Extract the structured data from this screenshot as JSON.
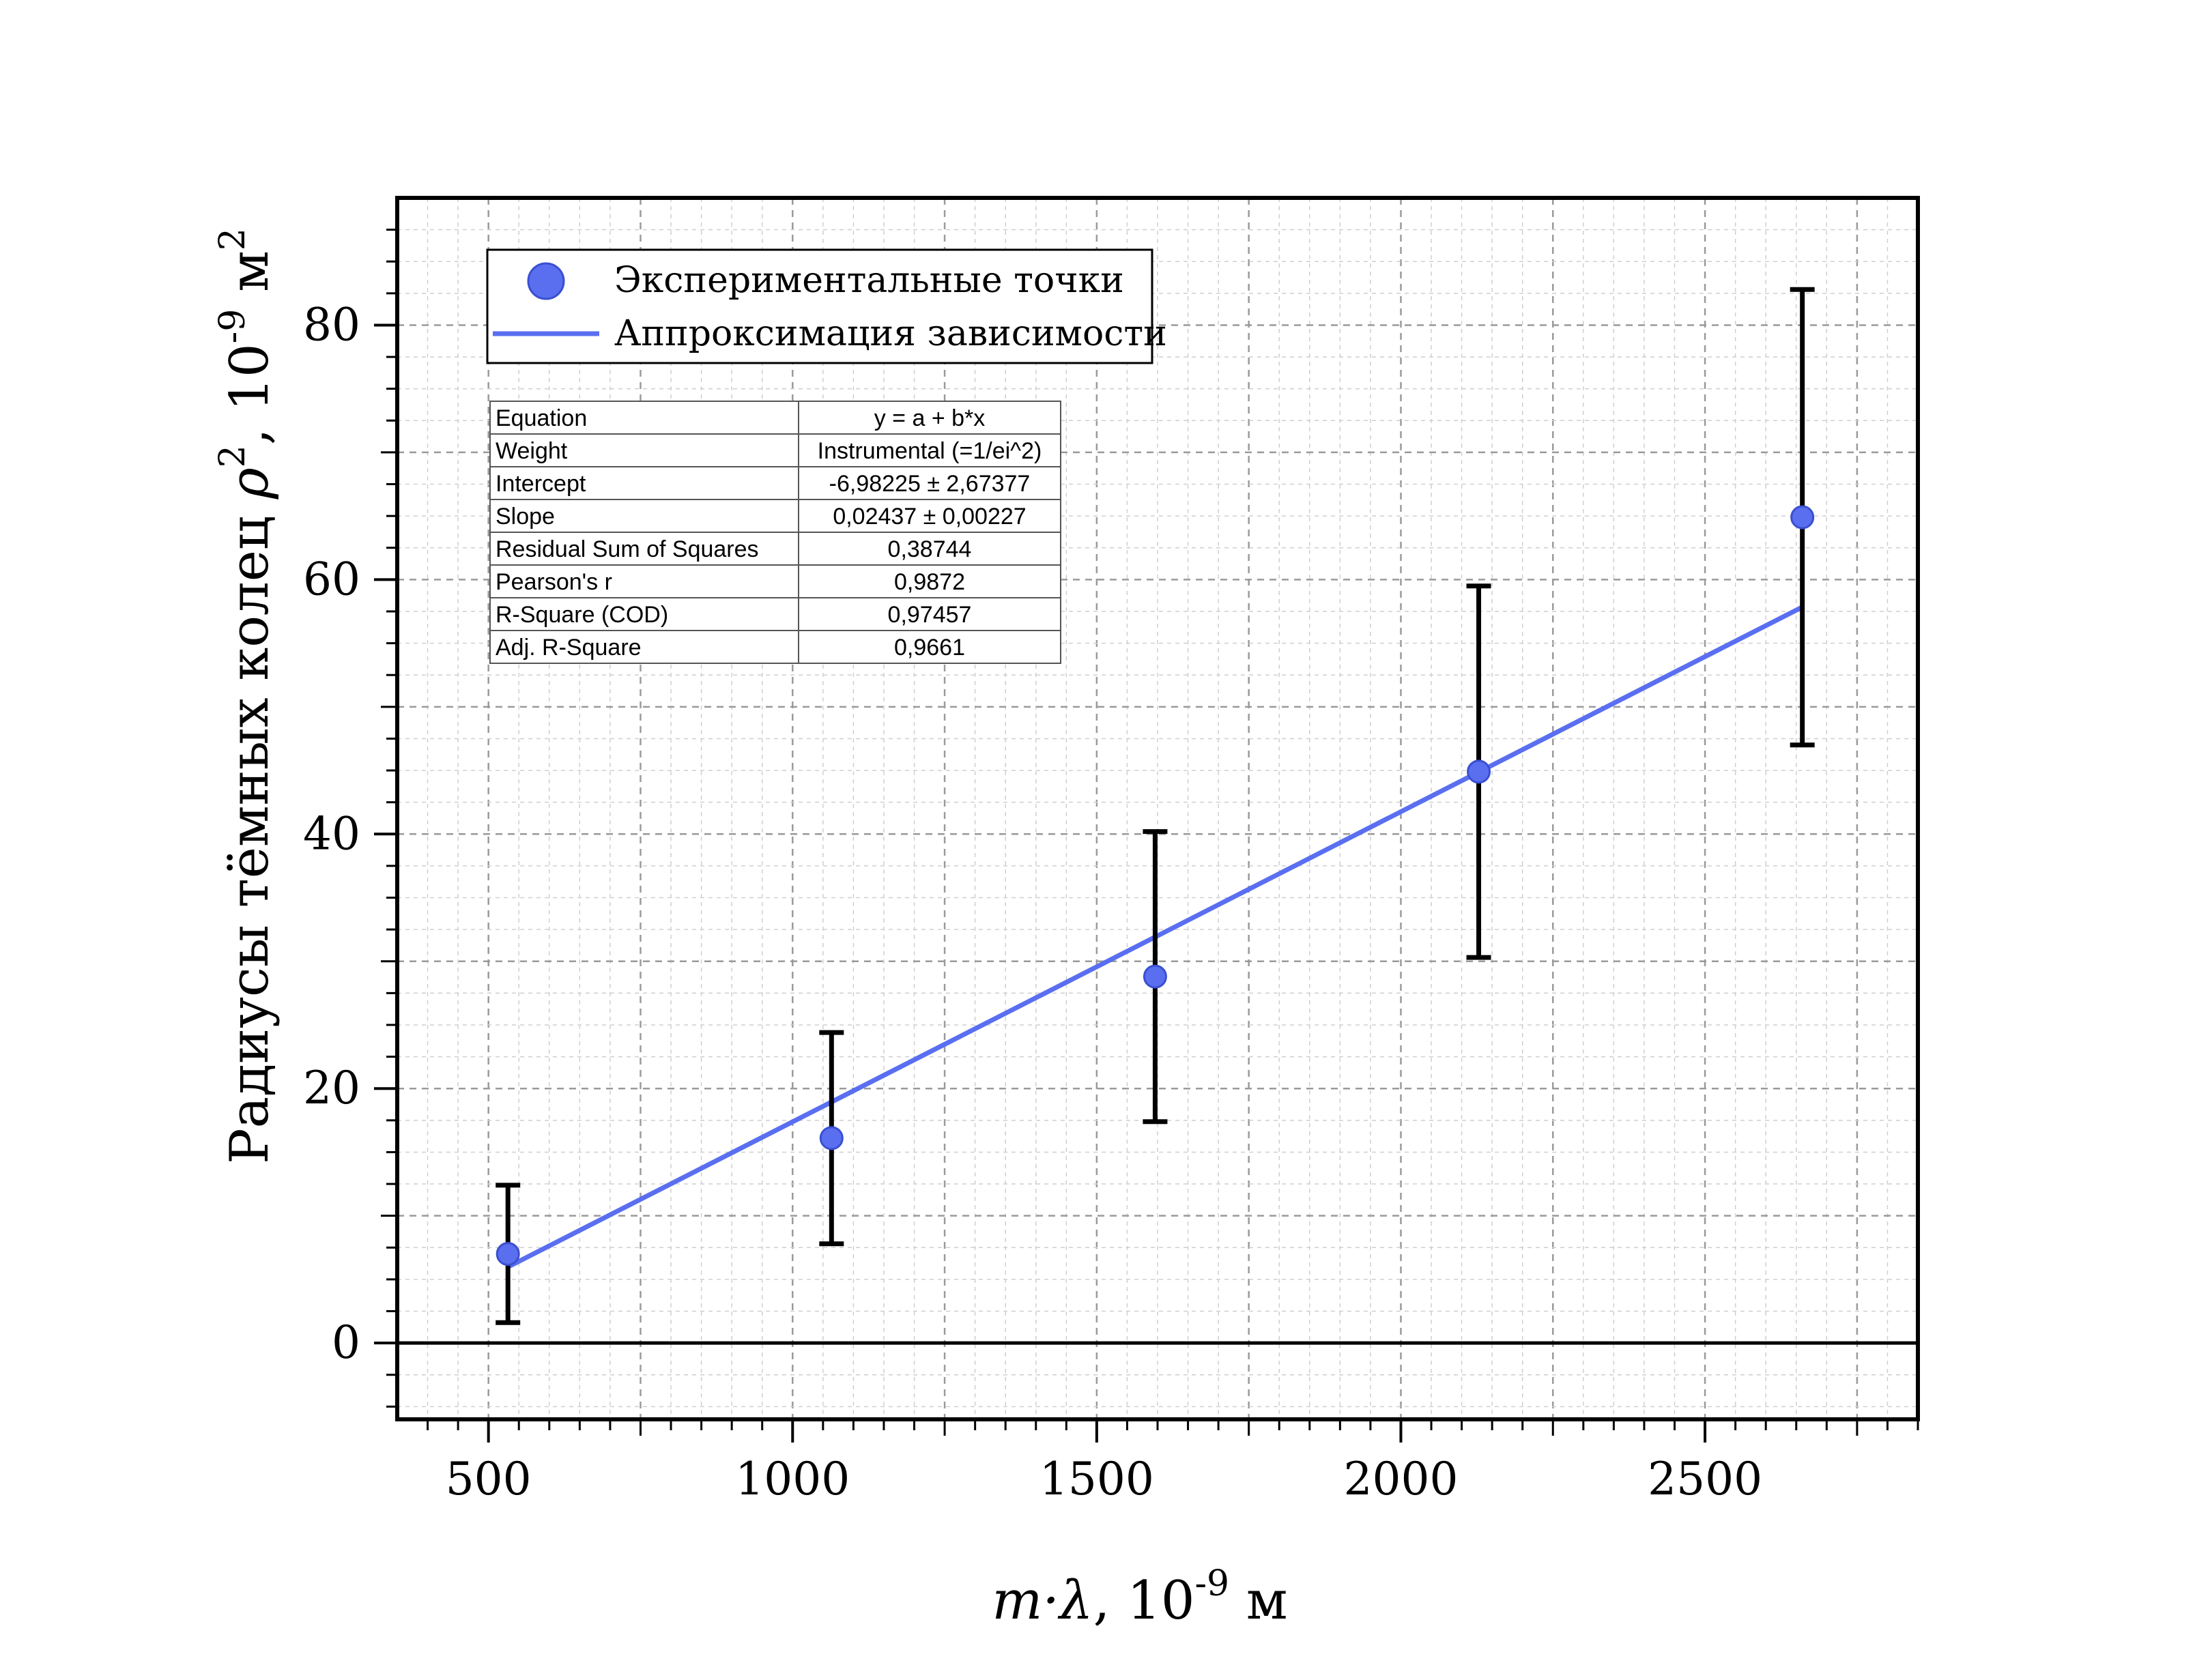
{
  "chart_data": {
    "type": "scatter",
    "xlabel_var": "m·λ",
    "xlabel_units": ", 10",
    "xlabel_exp": "-9",
    "xlabel_tail": " м",
    "ylabel_prefix": "Радиусы тёмных колец ",
    "ylabel_var": "ρ",
    "ylabel_sq": "2",
    "ylabel_mid": ", 10",
    "ylabel_exp": "-9",
    "ylabel_tail": " м",
    "ylabel_sq2": "2",
    "xlim": [
      350,
      2850
    ],
    "ylim": [
      -6,
      90
    ],
    "xticks": [
      500,
      1000,
      1500,
      2000,
      2500
    ],
    "yticks": [
      0,
      20,
      40,
      60,
      80
    ],
    "grid": true,
    "legend_position": "top-left",
    "series": [
      {
        "name": "Экспериментальные точки",
        "kind": "scatter",
        "color": "#5a6ff0",
        "x": [
          532,
          1064,
          1596,
          2128,
          2660
        ],
        "y": [
          7.0,
          16.1,
          28.8,
          44.9,
          64.9
        ],
        "yerr": [
          5.4,
          8.3,
          11.4,
          14.6,
          17.9
        ]
      },
      {
        "name": "Аппроксимация зависимости",
        "kind": "line",
        "color": "#5a6ff0",
        "x": [
          532,
          2660
        ],
        "y": [
          5.98,
          57.84
        ]
      }
    ],
    "stats_table": [
      [
        "Equation",
        "y = a + b*x"
      ],
      [
        "Weight",
        "Instrumental (=1/ei^2)"
      ],
      [
        "Intercept",
        "-6,98225 ± 2,67377"
      ],
      [
        "Slope",
        "0,02437 ± 0,00227"
      ],
      [
        "Residual Sum of Squares",
        "0,38744"
      ],
      [
        "Pearson's r",
        "0,9872"
      ],
      [
        "R-Square (COD)",
        "0,97457"
      ],
      [
        "Adj. R-Square",
        "0,9661"
      ]
    ]
  }
}
